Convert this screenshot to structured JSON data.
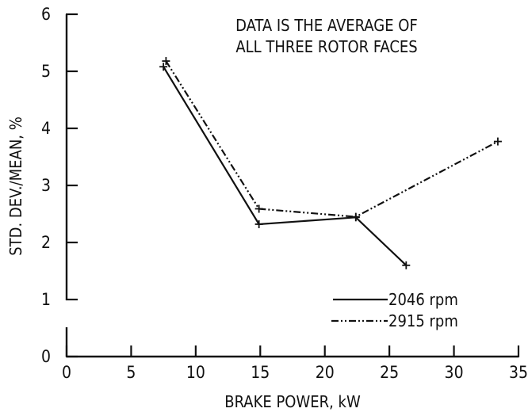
{
  "chart_data": {
    "type": "line",
    "title": "",
    "annotation": [
      "DATA IS THE AVERAGE OF",
      "ALL THREE ROTOR FACES"
    ],
    "xlabel": "BRAKE POWER, kW",
    "ylabel": "STD. DEV./MEAN, %",
    "xlim": [
      0,
      35
    ],
    "ylim": [
      0,
      6
    ],
    "xticks": [
      0,
      5,
      10,
      15,
      20,
      25,
      30,
      35
    ],
    "yticks": [
      0,
      1,
      2,
      3,
      4,
      5,
      6
    ],
    "grid": false,
    "legend_position": "bottom-right",
    "series": [
      {
        "name": "2046 rpm",
        "style": "solid",
        "color": "#111111",
        "x": [
          7.5,
          14.9,
          22.4,
          26.3
        ],
        "y": [
          5.08,
          2.32,
          2.44,
          1.6
        ]
      },
      {
        "name": "2915 rpm",
        "style": "dash-dot",
        "color": "#111111",
        "x": [
          7.7,
          14.9,
          22.4,
          33.4
        ],
        "y": [
          5.18,
          2.59,
          2.45,
          3.77
        ]
      }
    ]
  }
}
